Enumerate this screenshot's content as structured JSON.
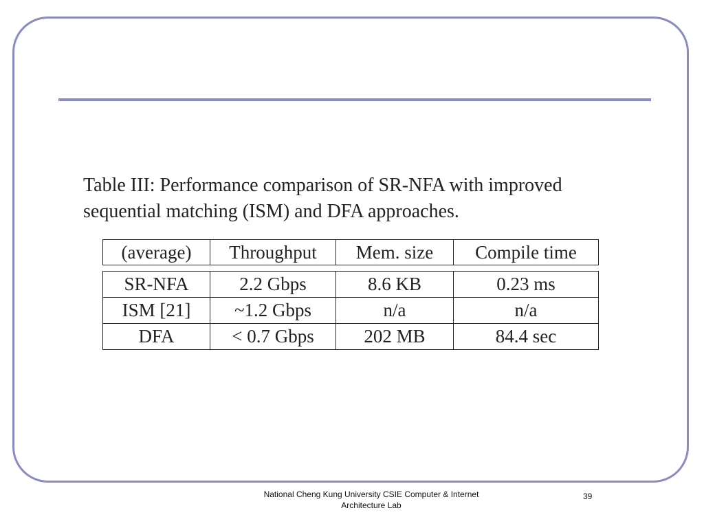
{
  "colors": {
    "frame": "#8a8cc0",
    "text": "#222222"
  },
  "caption": {
    "line1": "Table III: Performance comparison of SR-NFA with improved",
    "line2": "sequential matching (ISM) and DFA approaches."
  },
  "table": {
    "headers": [
      "(average)",
      "Throughput",
      "Mem. size",
      "Compile time"
    ],
    "rows": [
      [
        "SR-NFA",
        "2.2 Gbps",
        "8.6 KB",
        "0.23 ms"
      ],
      [
        "ISM [21]",
        "~1.2 Gbps",
        "n/a",
        "n/a"
      ],
      [
        "DFA",
        "< 0.7 Gbps",
        "202 MB",
        "84.4 sec"
      ]
    ]
  },
  "footer": {
    "line1": "National Cheng Kung University CSIE Computer & Internet",
    "line2": "Architecture Lab",
    "page_number": "39"
  }
}
